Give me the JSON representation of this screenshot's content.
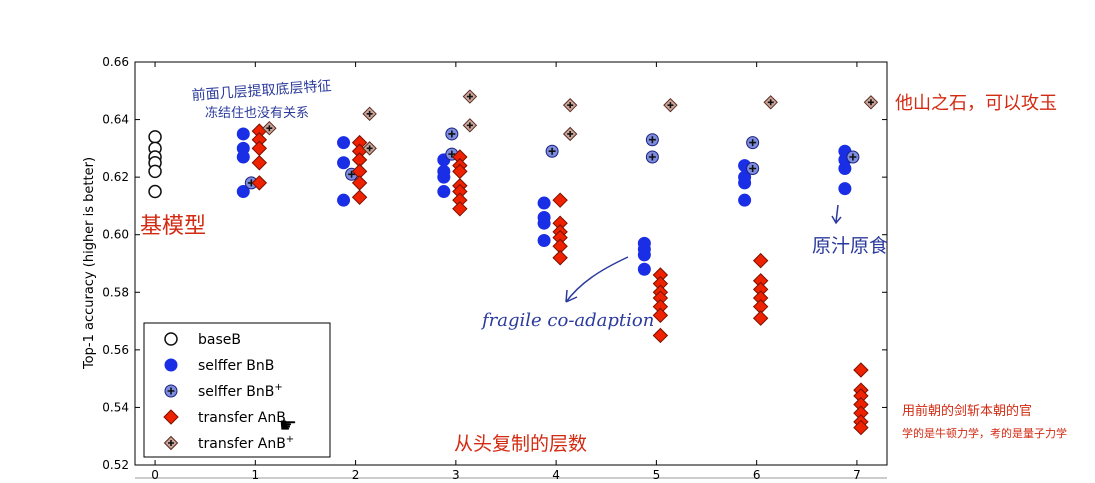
{
  "chart_data": {
    "type": "scatter",
    "xlabel": "",
    "ylabel": "Top-1 accuracy (higher is better)",
    "xlim": [
      -0.2,
      7.3
    ],
    "ylim": [
      0.52,
      0.66
    ],
    "xticks": [
      "0",
      "1",
      "2",
      "3",
      "4",
      "5",
      "6",
      "7"
    ],
    "yticks": [
      "0.52",
      "0.54",
      "0.56",
      "0.58",
      "0.60",
      "0.62",
      "0.64",
      "0.66"
    ],
    "legend_position": "lower-left",
    "series": [
      {
        "name": "baseB",
        "marker": "open-circle",
        "color": "#ffffff",
        "edge": "#111111",
        "points": [
          [
            0,
            0.634
          ],
          [
            0,
            0.63
          ],
          [
            0,
            0.627
          ],
          [
            0,
            0.625
          ],
          [
            0,
            0.622
          ],
          [
            0,
            0.615
          ]
        ]
      },
      {
        "name": "selffer BnB",
        "marker": "circle",
        "color": "#1a2ee6",
        "edge": "#1a2ee6",
        "points": [
          [
            1,
            0.635
          ],
          [
            1,
            0.63
          ],
          [
            1,
            0.627
          ],
          [
            1,
            0.615
          ],
          [
            2,
            0.632
          ],
          [
            2,
            0.625
          ],
          [
            2,
            0.612
          ],
          [
            3,
            0.626
          ],
          [
            3,
            0.622
          ],
          [
            3,
            0.62
          ],
          [
            3,
            0.615
          ],
          [
            4,
            0.611
          ],
          [
            4,
            0.606
          ],
          [
            4,
            0.604
          ],
          [
            4,
            0.598
          ],
          [
            5,
            0.597
          ],
          [
            5,
            0.595
          ],
          [
            5,
            0.593
          ],
          [
            5,
            0.588
          ],
          [
            6,
            0.624
          ],
          [
            6,
            0.62
          ],
          [
            6,
            0.618
          ],
          [
            6,
            0.612
          ],
          [
            7,
            0.629
          ],
          [
            7,
            0.626
          ],
          [
            7,
            0.623
          ],
          [
            7,
            0.616
          ]
        ]
      },
      {
        "name": "selffer BnB",
        "name_sup": "+",
        "marker": "circle-plus",
        "color": "#7f8ddf",
        "edge": "#1a2080",
        "points": [
          [
            1,
            0.618
          ],
          [
            2,
            0.621
          ],
          [
            3,
            0.635
          ],
          [
            3,
            0.628
          ],
          [
            4,
            0.629
          ],
          [
            5,
            0.633
          ],
          [
            5,
            0.627
          ],
          [
            6,
            0.632
          ],
          [
            6,
            0.623
          ],
          [
            7,
            0.627
          ]
        ]
      },
      {
        "name": "transfer AnB",
        "marker": "diamond",
        "color": "#ee2200",
        "edge": "#7a1000",
        "points": [
          [
            1,
            0.636
          ],
          [
            1,
            0.633
          ],
          [
            1,
            0.63
          ],
          [
            1,
            0.625
          ],
          [
            1,
            0.618
          ],
          [
            2,
            0.632
          ],
          [
            2,
            0.629
          ],
          [
            2,
            0.626
          ],
          [
            2,
            0.622
          ],
          [
            2,
            0.618
          ],
          [
            2,
            0.613
          ],
          [
            3,
            0.627
          ],
          [
            3,
            0.624
          ],
          [
            3,
            0.622
          ],
          [
            3,
            0.617
          ],
          [
            3,
            0.615
          ],
          [
            3,
            0.612
          ],
          [
            3,
            0.609
          ],
          [
            4,
            0.612
          ],
          [
            4,
            0.604
          ],
          [
            4,
            0.601
          ],
          [
            4,
            0.599
          ],
          [
            4,
            0.596
          ],
          [
            4,
            0.592
          ],
          [
            5,
            0.586
          ],
          [
            5,
            0.583
          ],
          [
            5,
            0.58
          ],
          [
            5,
            0.578
          ],
          [
            5,
            0.575
          ],
          [
            5,
            0.572
          ],
          [
            5,
            0.565
          ],
          [
            6,
            0.591
          ],
          [
            6,
            0.584
          ],
          [
            6,
            0.581
          ],
          [
            6,
            0.578
          ],
          [
            6,
            0.575
          ],
          [
            6,
            0.571
          ],
          [
            7,
            0.553
          ],
          [
            7,
            0.546
          ],
          [
            7,
            0.544
          ],
          [
            7,
            0.541
          ],
          [
            7,
            0.538
          ],
          [
            7,
            0.535
          ],
          [
            7,
            0.533
          ]
        ]
      },
      {
        "name": "transfer AnB",
        "name_sup": "+",
        "marker": "diamond-plus",
        "color": "#c9a59a",
        "edge": "#5a2a20",
        "points": [
          [
            1,
            0.637
          ],
          [
            2,
            0.642
          ],
          [
            2,
            0.63
          ],
          [
            3,
            0.648
          ],
          [
            3,
            0.638
          ],
          [
            4,
            0.645
          ],
          [
            4,
            0.635
          ],
          [
            5,
            0.645
          ],
          [
            6,
            0.646
          ],
          [
            7,
            0.646
          ]
        ]
      }
    ]
  },
  "annotations": {
    "top_left": [
      "前面几层提取底层特征",
      "冻结住也没有关系"
    ],
    "base_model": "基模型",
    "top_right": "他山之石，可以攻玉",
    "layer7_note": "原汁原食",
    "fragile": "fragile co-adaption",
    "bottom_center": "从头复制的层数",
    "bottom_right": [
      "用前朝的剑斩本朝的官",
      "学的是牛顿力学，考的是量子力学"
    ]
  },
  "colors": {
    "blue_ink": "#2b3a9c",
    "red_ink": "#d32a12"
  }
}
